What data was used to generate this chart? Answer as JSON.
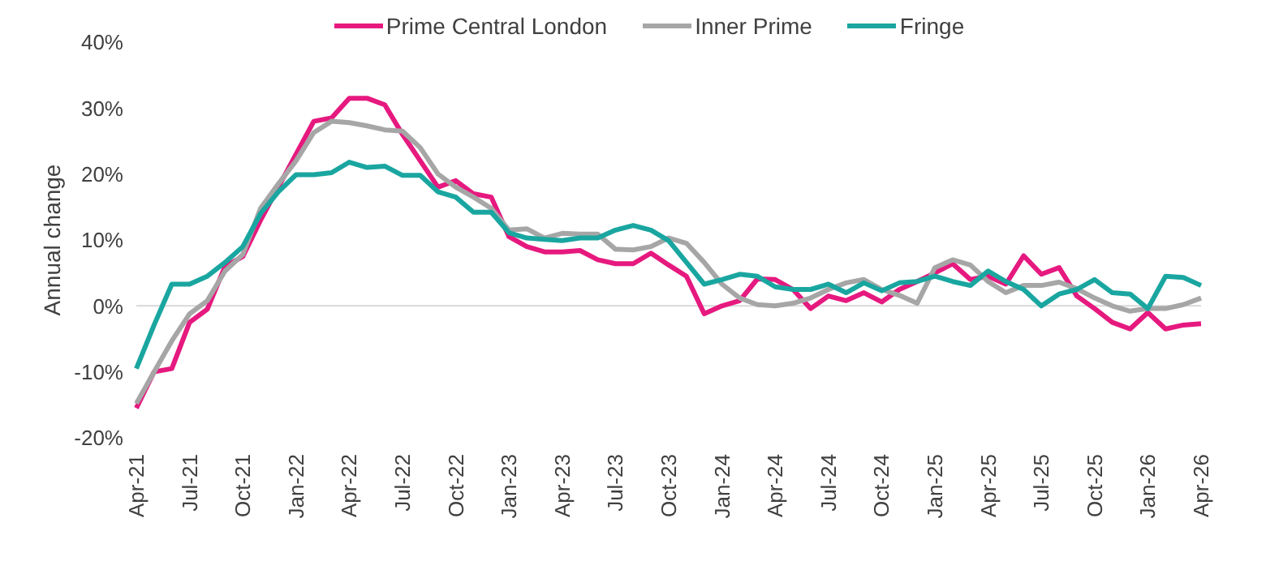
{
  "chart_data": {
    "type": "line",
    "ylabel": "Annual change",
    "categories": [
      "Apr-21",
      null,
      null,
      "Jul-21",
      null,
      null,
      "Oct-21",
      null,
      null,
      "Jan-22",
      null,
      null,
      "Apr-22",
      null,
      null,
      "Jul-22",
      null,
      null,
      "Oct-22",
      null,
      null,
      "Jan-23",
      null,
      null,
      "Apr-23",
      null,
      null,
      "Jul-23",
      null,
      null,
      "Oct-23",
      null,
      null,
      "Jan-24",
      null,
      null,
      "Apr-24",
      null,
      null,
      "Jul-24",
      null,
      null,
      "Oct-24",
      null,
      null,
      "Jan-25",
      null,
      null,
      "Apr-25",
      null,
      null,
      "Jul-25",
      null,
      null,
      "Oct-25",
      null,
      null,
      "Jan-26",
      null,
      null,
      "Apr-26"
    ],
    "series": [
      {
        "name": "Prime Central London",
        "color": "#e6197f",
        "values": [
          -15.5,
          -10,
          -9.5,
          -2.5,
          -0.5,
          6,
          7.5,
          13,
          18,
          23,
          28,
          28.5,
          31.5,
          31.5,
          30.5,
          26,
          22,
          18,
          19,
          17,
          16.5,
          10.5,
          9,
          8.2,
          8.2,
          8.4,
          7,
          6.4,
          6.4,
          8,
          6.2,
          4.5,
          -1.2,
          0,
          0.8,
          4.1,
          4,
          2.5,
          -0.4,
          1.5,
          0.8,
          2,
          0.6,
          2.5,
          3.7,
          5,
          6.4,
          4,
          4.5,
          3.3,
          7.6,
          4.8,
          5.8,
          1.5,
          -0.4,
          -2.5,
          -3.5,
          -1,
          -3.5,
          -2.9,
          -2.7
        ]
      },
      {
        "name": "Inner Prime",
        "color": "#a6a6a6",
        "values": [
          -14.8,
          -10,
          -5.3,
          -1.2,
          0.8,
          5.3,
          7.8,
          14.8,
          18.5,
          22,
          26.3,
          28,
          27.8,
          27.3,
          26.7,
          26.5,
          24,
          20,
          18,
          16.5,
          14.8,
          11.5,
          11.7,
          10.3,
          11,
          10.9,
          10.9,
          8.6,
          8.5,
          9,
          10.3,
          9.5,
          6.6,
          3.3,
          1.2,
          0.2,
          0,
          0.4,
          1.2,
          2.5,
          3.5,
          4,
          2.5,
          1.6,
          0.4,
          5.8,
          7,
          6.2,
          3.7,
          2,
          3.1,
          3.1,
          3.6,
          2.6,
          1.2,
          0,
          -0.8,
          -0.4,
          -0.4,
          0.2,
          1.2
        ]
      },
      {
        "name": "Fringe",
        "color": "#1aa6a0",
        "values": [
          -9.5,
          -2.9,
          3.3,
          3.3,
          4.5,
          6.6,
          9,
          14,
          17.3,
          19.9,
          19.9,
          20.2,
          21.8,
          21,
          21.2,
          19.8,
          19.8,
          17.3,
          16.5,
          14.2,
          14.2,
          11.1,
          10.3,
          10.1,
          9.9,
          10.3,
          10.3,
          11.5,
          12.2,
          11.5,
          9.9,
          6.6,
          3.3,
          4,
          4.8,
          4.5,
          2.9,
          2.5,
          2.5,
          3.3,
          2,
          3.5,
          2.3,
          3.5,
          3.7,
          4.5,
          3.7,
          3.1,
          5.3,
          3.7,
          2.5,
          0,
          1.8,
          2.5,
          4,
          2,
          1.8,
          -0.4,
          4.5,
          4.3,
          3.1
        ]
      }
    ],
    "ylim": [
      -20,
      40
    ],
    "yticks": [
      {
        "value": -20,
        "label": "-20%"
      },
      {
        "value": -10,
        "label": "-10%"
      },
      {
        "value": 0,
        "label": "0%"
      },
      {
        "value": 10,
        "label": "10%"
      },
      {
        "value": 20,
        "label": "20%"
      },
      {
        "value": 30,
        "label": "30%"
      },
      {
        "value": 40,
        "label": "40%"
      }
    ],
    "ref_lines": [
      {
        "axis": "y",
        "value": 0,
        "color": "#d9d9d9"
      }
    ],
    "legend": "top",
    "marker": "none",
    "line_style": "solid"
  }
}
